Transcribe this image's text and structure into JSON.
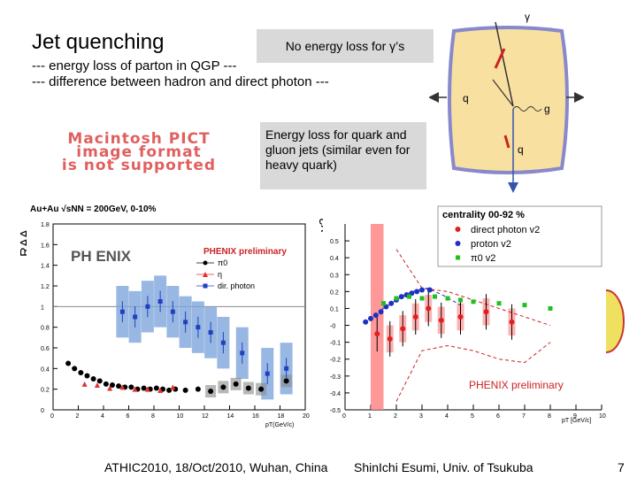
{
  "slide": {
    "title": "Jet quenching",
    "line1": "--- energy loss of parton in QGP ---",
    "line2": "--- difference between hadron and direct photon ---",
    "callout_top": "No energy loss for γ’s",
    "callout_mid": "Energy loss for quark and gluon jets (similar even for heavy quark)",
    "pict_placeholder": [
      "Macintosh PICT",
      "image format",
      "is not supported"
    ],
    "footer_left": "ATHIC2010, 18/Oct/2010, Wuhan, China",
    "footer_mid": "ShinIchi Esumi, Univ. of Tsukuba",
    "page_number": "7"
  },
  "diagram": {
    "labels": {
      "gamma": "γ",
      "q1": "q",
      "g": "g",
      "q2": "q"
    }
  },
  "chart_data": [
    {
      "type": "scatter",
      "header": "Au+Au √sNN = 200GeV, 0-10%",
      "logo": "PH ENIX",
      "preliminary": "PHENIX preliminary",
      "ylabel": "RAA",
      "xlabel": "pT(GeV/c)",
      "xlim": [
        0,
        20
      ],
      "ylim": [
        0,
        1.8
      ],
      "xticks": [
        0,
        2,
        4,
        6,
        8,
        10,
        12,
        14,
        16,
        18,
        20
      ],
      "yticks": [
        0,
        0.2,
        0.4,
        0.6,
        0.8,
        1,
        1.2,
        1.4,
        1.6,
        1.8
      ],
      "reference_line": 1,
      "series": [
        {
          "name": "π0",
          "color": "#000000",
          "x": [
            1.2,
            1.7,
            2.2,
            2.7,
            3.2,
            3.7,
            4.2,
            4.7,
            5.2,
            5.7,
            6.2,
            6.7,
            7.2,
            7.7,
            8.2,
            8.7,
            9.2,
            9.7,
            10.5,
            11.5,
            12.5,
            13.5,
            14.5,
            15.5,
            16.5,
            18.5
          ],
          "y": [
            0.45,
            0.4,
            0.36,
            0.33,
            0.3,
            0.28,
            0.25,
            0.24,
            0.23,
            0.22,
            0.22,
            0.2,
            0.21,
            0.2,
            0.21,
            0.2,
            0.19,
            0.2,
            0.19,
            0.2,
            0.18,
            0.22,
            0.25,
            0.21,
            0.2,
            0.28
          ]
        },
        {
          "name": "η",
          "color": "#e03030",
          "x": [
            2.5,
            3.5,
            4.5,
            5.5,
            6.5,
            7.5,
            8.5,
            9.5
          ],
          "y": [
            0.25,
            0.24,
            0.21,
            0.22,
            0.2,
            0.2,
            0.19,
            0.22
          ]
        },
        {
          "name": "dir. photon",
          "color": "#2040c0",
          "x": [
            5.5,
            6.5,
            7.5,
            8.5,
            9.5,
            10.5,
            11.5,
            12.5,
            13.5,
            15.0,
            17.0,
            18.5
          ],
          "y": [
            0.95,
            0.9,
            1.0,
            1.05,
            0.95,
            0.85,
            0.8,
            0.75,
            0.65,
            0.55,
            0.35,
            0.4
          ]
        }
      ]
    },
    {
      "type": "scatter",
      "legend_title": "centrality 00-92 %",
      "preliminary": "PHENIX preliminary",
      "ylabel": "v2",
      "xlabel": "pT [GeV/c]",
      "xlim": [
        0,
        10
      ],
      "ylim": [
        -0.5,
        0.6
      ],
      "xticks": [
        0,
        1,
        2,
        3,
        4,
        5,
        6,
        7,
        8,
        9,
        10
      ],
      "yticks": [
        -0.5,
        -0.4,
        -0.3,
        -0.2,
        -0.1,
        0,
        0.1,
        0.2,
        0.3,
        0.4,
        0.5
      ],
      "ytick_labels": [
        "-0.5",
        "-0.4",
        "-0.3",
        "-0.2",
        "-0.1",
        "-0",
        "0.1",
        "0.2",
        "0.3",
        "0.4",
        "0.5"
      ],
      "series": [
        {
          "name": "direct photon v2",
          "color": "#e02020",
          "x": [
            1.25,
            1.75,
            2.25,
            2.75,
            3.25,
            3.75,
            4.5,
            5.5,
            6.5
          ],
          "y": [
            -0.05,
            -0.08,
            -0.02,
            0.05,
            0.1,
            0.03,
            0.05,
            0.08,
            0.02
          ]
        },
        {
          "name": "proton v2",
          "color": "#2030c0",
          "x": [
            0.8,
            1.0,
            1.2,
            1.4,
            1.6,
            1.8,
            2.0,
            2.2,
            2.4,
            2.6,
            2.8,
            3.0,
            3.3
          ],
          "y": [
            0.02,
            0.04,
            0.06,
            0.08,
            0.11,
            0.13,
            0.15,
            0.17,
            0.18,
            0.19,
            0.2,
            0.21,
            0.21
          ]
        },
        {
          "name": "π0 v2",
          "color": "#20c020",
          "x": [
            1.5,
            2.0,
            2.5,
            3.0,
            3.5,
            4.0,
            4.5,
            5.0,
            6.0,
            7.0,
            8.0
          ],
          "y": [
            0.13,
            0.16,
            0.17,
            0.16,
            0.17,
            0.16,
            0.15,
            0.14,
            0.13,
            0.12,
            0.1
          ]
        }
      ]
    }
  ]
}
